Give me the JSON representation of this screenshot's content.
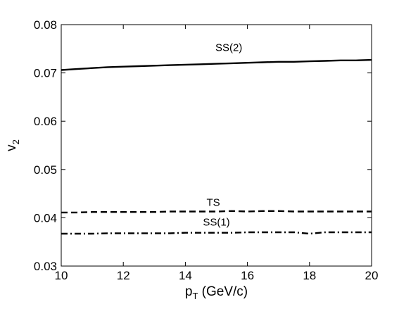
{
  "chart_data": {
    "type": "line",
    "title": "",
    "xlabel": {
      "main": "p",
      "sub": "T",
      "unit": " (GeV/c)"
    },
    "ylabel": {
      "main": "v",
      "sub": "2"
    },
    "xlim": [
      10,
      20
    ],
    "ylim": [
      0.03,
      0.08
    ],
    "xticks": [
      10,
      12,
      14,
      16,
      18,
      20
    ],
    "xtick_labels": [
      "10",
      "12",
      "14",
      "16",
      "18",
      "20"
    ],
    "yticks": [
      0.03,
      0.04,
      0.05,
      0.06,
      0.07,
      0.08
    ],
    "ytick_labels": [
      "0.03",
      "0.04",
      "0.05",
      "0.06",
      "0.07",
      "0.08"
    ],
    "grid": false,
    "legend": "none",
    "series": [
      {
        "name": "SS(2)",
        "style": "solid",
        "x": [
          10,
          10.5,
          11,
          11.5,
          12,
          12.5,
          13,
          13.5,
          14,
          14.5,
          15,
          15.5,
          16,
          16.5,
          17,
          17.5,
          18,
          18.5,
          19,
          19.5,
          20
        ],
        "y": [
          0.0706,
          0.0708,
          0.071,
          0.0712,
          0.0713,
          0.0714,
          0.0715,
          0.0716,
          0.0717,
          0.0718,
          0.0719,
          0.072,
          0.0721,
          0.0722,
          0.0723,
          0.0723,
          0.0724,
          0.0725,
          0.0726,
          0.0726,
          0.0727
        ]
      },
      {
        "name": "TS",
        "style": "dashed",
        "x": [
          10,
          10.5,
          11,
          11.5,
          12,
          12.5,
          13,
          13.5,
          14,
          14.5,
          15,
          15.5,
          16,
          16.5,
          17,
          17.5,
          18,
          18.5,
          19,
          19.5,
          20
        ],
        "y": [
          0.0411,
          0.0411,
          0.0412,
          0.0412,
          0.0412,
          0.0412,
          0.0412,
          0.0413,
          0.0413,
          0.0413,
          0.0413,
          0.0414,
          0.0413,
          0.0414,
          0.0414,
          0.0413,
          0.0413,
          0.0413,
          0.0413,
          0.0413,
          0.0413
        ]
      },
      {
        "name": "SS(1)",
        "style": "dashdot",
        "x": [
          10,
          10.5,
          11,
          11.5,
          12,
          12.5,
          13,
          13.5,
          14,
          14.5,
          15,
          15.5,
          16,
          16.5,
          17,
          17.5,
          18,
          18.5,
          19,
          19.5,
          20
        ],
        "y": [
          0.0367,
          0.0367,
          0.0367,
          0.0368,
          0.0368,
          0.0368,
          0.0368,
          0.0368,
          0.0369,
          0.0369,
          0.0369,
          0.0369,
          0.037,
          0.037,
          0.037,
          0.037,
          0.0367,
          0.037,
          0.037,
          0.037,
          0.037
        ]
      }
    ],
    "annotations": [
      {
        "text": "SS(2)",
        "x": 15.4,
        "y": 0.0745
      },
      {
        "text": "TS",
        "x": 14.9,
        "y": 0.0425
      },
      {
        "text": "SS(1)",
        "x": 15.0,
        "y": 0.0384
      }
    ]
  }
}
